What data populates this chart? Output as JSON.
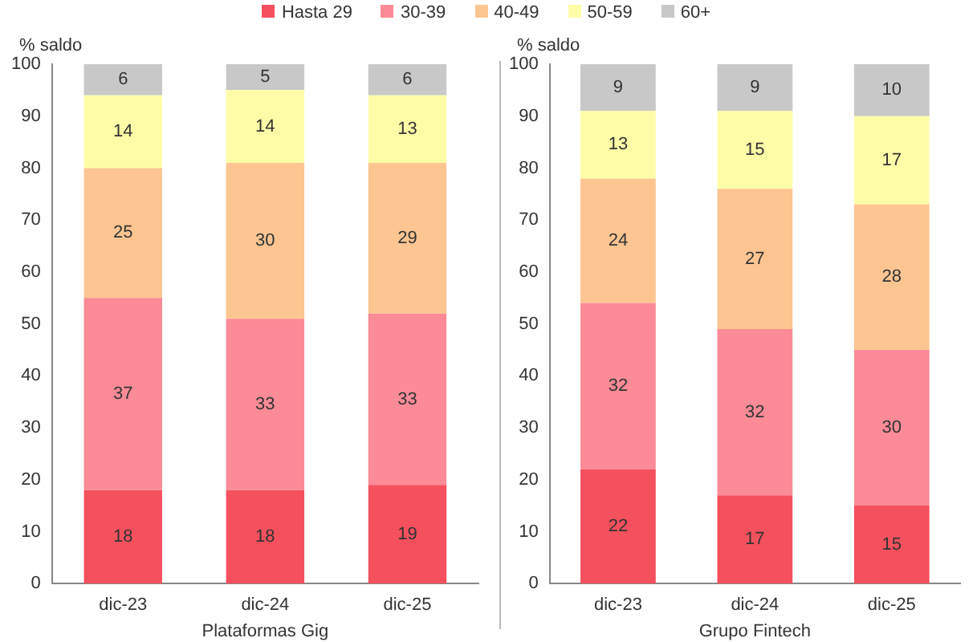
{
  "chart_data": [
    {
      "type": "bar",
      "stacked": true,
      "xlabel": "Plataformas Gig",
      "ylabel": "% saldo",
      "categories": [
        "dic-23",
        "dic-24",
        "dic-25"
      ],
      "ylim": [
        0,
        100
      ],
      "yticks": [
        0,
        10,
        20,
        30,
        40,
        50,
        60,
        70,
        80,
        90,
        100
      ],
      "grid": false,
      "legend": "top",
      "data_labels": true,
      "series": [
        {
          "name": "Hasta 29",
          "color": "#f5505e",
          "values": [
            18,
            18,
            19
          ]
        },
        {
          "name": "30-39",
          "color": "#fb8b96",
          "values": [
            37,
            33,
            33
          ]
        },
        {
          "name": "40-49",
          "color": "#fdc591",
          "values": [
            25,
            30,
            29
          ]
        },
        {
          "name": "50-59",
          "color": "#fdfda8",
          "values": [
            14,
            14,
            13
          ]
        },
        {
          "name": "60+",
          "color": "#c8c8c8",
          "values": [
            6,
            5,
            6
          ]
        }
      ]
    },
    {
      "type": "bar",
      "stacked": true,
      "xlabel": "Grupo Fintech",
      "ylabel": "% saldo",
      "categories": [
        "dic-23",
        "dic-24",
        "dic-25"
      ],
      "ylim": [
        0,
        100
      ],
      "yticks": [
        0,
        10,
        20,
        30,
        40,
        50,
        60,
        70,
        80,
        90,
        100
      ],
      "grid": false,
      "data_labels": true,
      "series": [
        {
          "color": "#f5505e",
          "values": [
            22,
            17,
            15
          ]
        },
        {
          "color": "#fb8b96",
          "values": [
            32,
            32,
            30
          ]
        },
        {
          "color": "#fdc591",
          "values": [
            24,
            27,
            28
          ]
        },
        {
          "color": "#fdfda8",
          "values": [
            13,
            15,
            17
          ]
        },
        {
          "color": "#c8c8c8",
          "values": [
            9,
            9,
            10
          ]
        }
      ]
    }
  ]
}
